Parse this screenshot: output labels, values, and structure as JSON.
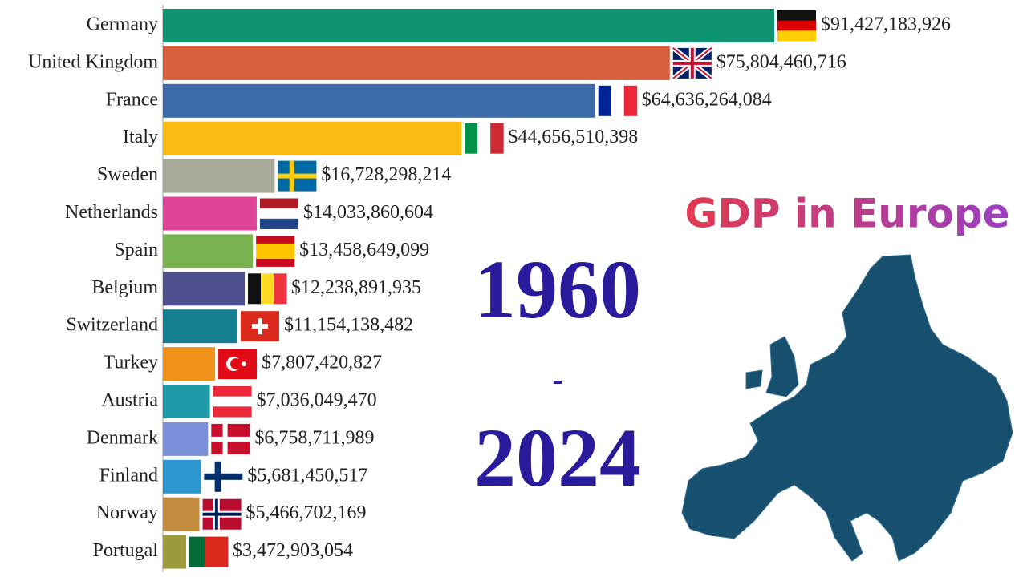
{
  "chart_data": {
    "type": "bar",
    "orientation": "horizontal",
    "title": "GDP in Europe",
    "annotations": [
      "1960",
      "-",
      "2024"
    ],
    "categories": [
      "Germany",
      "United Kingdom",
      "France",
      "Italy",
      "Sweden",
      "Netherlands",
      "Spain",
      "Belgium",
      "Switzerland",
      "Turkey",
      "Austria",
      "Denmark",
      "Finland",
      "Norway",
      "Portugal"
    ],
    "values": [
      91427183926,
      75804460716,
      64636264084,
      44656510398,
      16728298214,
      14033860604,
      13458649099,
      12238891935,
      11154138482,
      7807420827,
      7036049470,
      6758711989,
      5681450517,
      5466702169,
      3472903054
    ],
    "value_labels": [
      "$91,427,183,926",
      "$75,804,460,716",
      "$64,636,264,084",
      "$44,656,510,398",
      "$16,728,298,214",
      "$14,033,860,604",
      "$13,458,649,099",
      "$12,238,891,935",
      "$11,154,138,482",
      "$7,807,420,827",
      "$7,036,049,470",
      "$6,758,711,989",
      "$5,681,450,517",
      "$5,466,702,169",
      "$3,472,903,054"
    ],
    "colors": [
      "#0e9470",
      "#d9603e",
      "#3d6aa8",
      "#fbbd14",
      "#a9a99a",
      "#e0449a",
      "#7ab450",
      "#4d4f8f",
      "#137f90",
      "#f09219",
      "#2099a8",
      "#7b8fd8",
      "#2a97d0",
      "#c48a3e",
      "#9c9a3c"
    ],
    "xlim": [
      0,
      91427183926
    ]
  }
}
